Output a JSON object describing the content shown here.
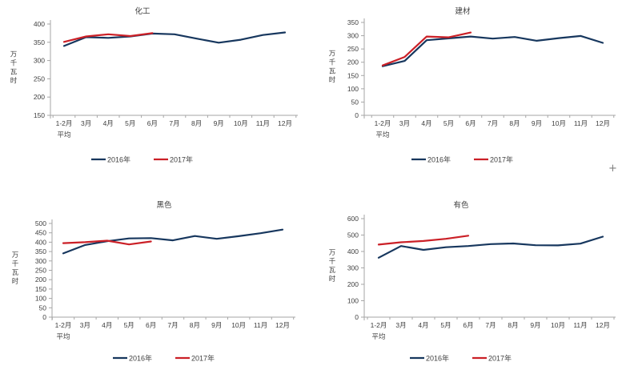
{
  "page": {
    "background": "#ffffff"
  },
  "cursor_glyph": "+",
  "colors": {
    "series_2016": "#17375E",
    "series_2017": "#CB2027",
    "axis": "#A6A6A6",
    "text": "#404040"
  },
  "chart_data": [
    {
      "type": "line",
      "title": "化工",
      "xlabel": "",
      "ylabel": "万千瓦时",
      "ylim": [
        150,
        400
      ],
      "ytick_step": 50,
      "grid": false,
      "legend_position": "bottom",
      "categories": [
        "1-2月\n平均",
        "3月",
        "4月",
        "5月",
        "6月",
        "7月",
        "8月",
        "9月",
        "10月",
        "11月",
        "12月"
      ],
      "series": [
        {
          "name": "2016年",
          "color": "#17375E",
          "values": [
            340,
            364,
            362,
            366,
            374,
            372,
            360,
            349,
            357,
            370,
            377
          ]
        },
        {
          "name": "2017年",
          "color": "#CB2027",
          "values": [
            351,
            366,
            372,
            367,
            375
          ]
        }
      ]
    },
    {
      "type": "line",
      "title": "建材",
      "xlabel": "",
      "ylabel": "万千瓦时",
      "ylim": [
        0,
        350
      ],
      "ytick_step": 50,
      "grid": false,
      "legend_position": "bottom",
      "categories": [
        "1-2月\n平均",
        "3月",
        "4月",
        "5月",
        "6月",
        "7月",
        "8月",
        "9月",
        "10月",
        "11月",
        "12月"
      ],
      "series": [
        {
          "name": "2016年",
          "color": "#17375E",
          "values": [
            185,
            205,
            283,
            290,
            297,
            289,
            295,
            281,
            291,
            299,
            273
          ]
        },
        {
          "name": "2017年",
          "color": "#CB2027",
          "values": [
            188,
            220,
            297,
            294,
            312
          ]
        }
      ]
    },
    {
      "type": "line",
      "title": "黑色",
      "xlabel": "",
      "ylabel": "万千瓦时",
      "ylim": [
        0,
        500
      ],
      "ytick_step": 50,
      "grid": false,
      "legend_position": "bottom",
      "categories": [
        "1-2月\n平均",
        "3月",
        "4月",
        "5月",
        "6月",
        "7月",
        "8月",
        "9月",
        "10月",
        "11月",
        "12月"
      ],
      "series": [
        {
          "name": "2016年",
          "color": "#17375E",
          "values": [
            340,
            385,
            405,
            420,
            422,
            410,
            433,
            418,
            432,
            448,
            467
          ]
        },
        {
          "name": "2017年",
          "color": "#CB2027",
          "values": [
            395,
            400,
            408,
            388,
            404
          ]
        }
      ]
    },
    {
      "type": "line",
      "title": "有色",
      "xlabel": "",
      "ylabel": "万千瓦时",
      "ylim": [
        0,
        600
      ],
      "ytick_step": 100,
      "grid": false,
      "legend_position": "bottom",
      "categories": [
        "1-2月\n平均",
        "3月",
        "4月",
        "5月",
        "6月",
        "7月",
        "8月",
        "9月",
        "10月",
        "11月",
        "12月"
      ],
      "series": [
        {
          "name": "2016年",
          "color": "#17375E",
          "values": [
            362,
            433,
            410,
            426,
            433,
            445,
            449,
            438,
            437,
            448,
            490
          ]
        },
        {
          "name": "2017年",
          "color": "#CB2027",
          "values": [
            442,
            456,
            464,
            477,
            496
          ]
        }
      ]
    }
  ]
}
